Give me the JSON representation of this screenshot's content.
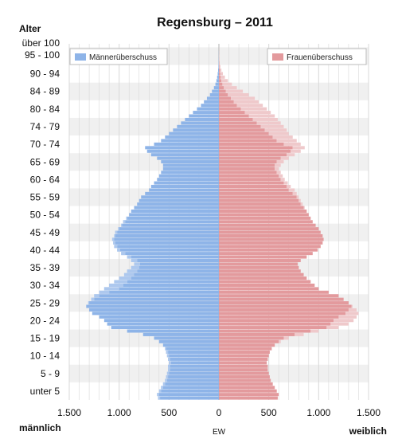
{
  "chart_data": {
    "type": "bar",
    "orientation": "horizontal-population-pyramid",
    "title": "Regensburg – 2011",
    "y_axis_title": "Alter",
    "x_unit_label": "EW",
    "left_side_label": "männlich",
    "right_side_label": "weiblich",
    "xlim": [
      -1500,
      1500
    ],
    "x_ticks": [
      -1500,
      -1000,
      -500,
      0,
      500,
      1000,
      1500
    ],
    "x_tick_labels": [
      "1.500",
      "1.000",
      "500",
      "0",
      "500",
      "1.000",
      "1.500"
    ],
    "y_tick_labels": [
      "unter 5",
      "5 - 9",
      "10 - 14",
      "15 - 19",
      "20 - 24",
      "25 - 29",
      "30 - 34",
      "35 - 39",
      "40 - 44",
      "45 - 49",
      "50 - 54",
      "55 - 59",
      "60 - 64",
      "65 - 69",
      "70 - 74",
      "74 - 79",
      "80 - 84",
      "84 - 89",
      "90 - 94",
      "95 - 100",
      "über 100"
    ],
    "legend": [
      "Männerüberschuss",
      "Frauenüberschuss"
    ],
    "legend_placement": "top-left and top-right",
    "grid": true,
    "colors": {
      "male": "#8eb4e8",
      "female": "#e39a9d",
      "male_surplus": "#c6d8f2",
      "female_surplus": "#efc9cb",
      "band": "#f0f0f0",
      "grid": "#d8d8d8"
    },
    "ages_1yr_start": 0,
    "male": [
      610,
      620,
      600,
      580,
      560,
      540,
      530,
      520,
      510,
      510,
      500,
      510,
      520,
      530,
      540,
      560,
      600,
      650,
      760,
      920,
      1080,
      1120,
      1150,
      1200,
      1270,
      1300,
      1330,
      1310,
      1280,
      1250,
      1200,
      1150,
      1100,
      1050,
      1000,
      950,
      920,
      880,
      850,
      880,
      920,
      980,
      1020,
      1050,
      1060,
      1070,
      1050,
      1040,
      1010,
      980,
      960,
      930,
      900,
      880,
      850,
      820,
      800,
      780,
      740,
      700,
      680,
      650,
      620,
      600,
      580,
      560,
      560,
      580,
      620,
      680,
      720,
      740,
      650,
      580,
      540,
      500,
      460,
      420,
      380,
      340,
      300,
      260,
      220,
      180,
      150,
      120,
      90,
      70,
      50,
      35,
      25,
      18,
      12,
      8,
      5,
      3,
      2,
      1,
      1,
      0,
      0
    ],
    "female": [
      590,
      600,
      580,
      560,
      540,
      520,
      510,
      500,
      490,
      490,
      480,
      490,
      500,
      510,
      530,
      560,
      620,
      700,
      850,
      1000,
      1200,
      1300,
      1350,
      1380,
      1400,
      1380,
      1340,
      1300,
      1250,
      1200,
      1100,
      1000,
      960,
      920,
      880,
      850,
      820,
      800,
      790,
      820,
      880,
      940,
      990,
      1020,
      1040,
      1050,
      1040,
      1020,
      1000,
      970,
      940,
      920,
      900,
      880,
      860,
      840,
      820,
      800,
      780,
      760,
      720,
      690,
      660,
      640,
      620,
      600,
      620,
      650,
      700,
      760,
      820,
      860,
      820,
      780,
      740,
      700,
      680,
      650,
      620,
      590,
      560,
      520,
      480,
      440,
      400,
      360,
      300,
      240,
      180,
      130,
      90,
      60,
      40,
      25,
      15,
      8,
      5,
      3,
      2,
      1,
      0
    ]
  }
}
